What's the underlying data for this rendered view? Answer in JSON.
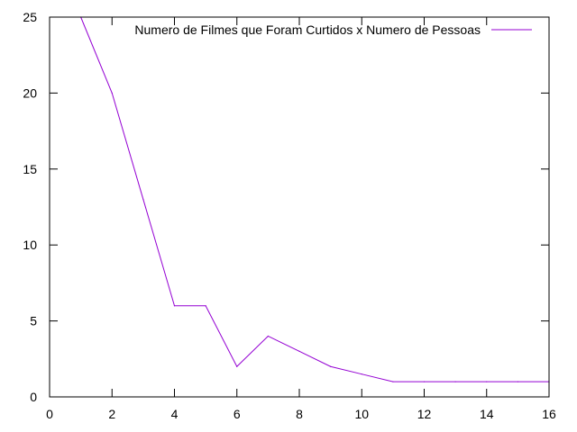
{
  "chart_data": {
    "type": "line",
    "title": "",
    "xlabel": "",
    "ylabel": "",
    "xlim": [
      0,
      16
    ],
    "ylim": [
      0,
      25
    ],
    "x_ticks": [
      0,
      2,
      4,
      6,
      8,
      10,
      12,
      14,
      16
    ],
    "y_ticks": [
      0,
      5,
      10,
      15,
      20,
      25
    ],
    "grid": false,
    "legend_position": "top-right",
    "series": [
      {
        "name": "Numero de Filmes que Foram Curtidos x Numero de Pessoas",
        "color": "#9400d3",
        "x": [
          1,
          2,
          3,
          4,
          5,
          6,
          7,
          8,
          9,
          10,
          11,
          12,
          13,
          14,
          15,
          16
        ],
        "y": [
          25,
          20,
          13,
          6,
          6,
          2,
          4,
          3,
          2,
          1.5,
          1,
          1,
          1,
          1,
          1,
          1
        ]
      }
    ]
  }
}
